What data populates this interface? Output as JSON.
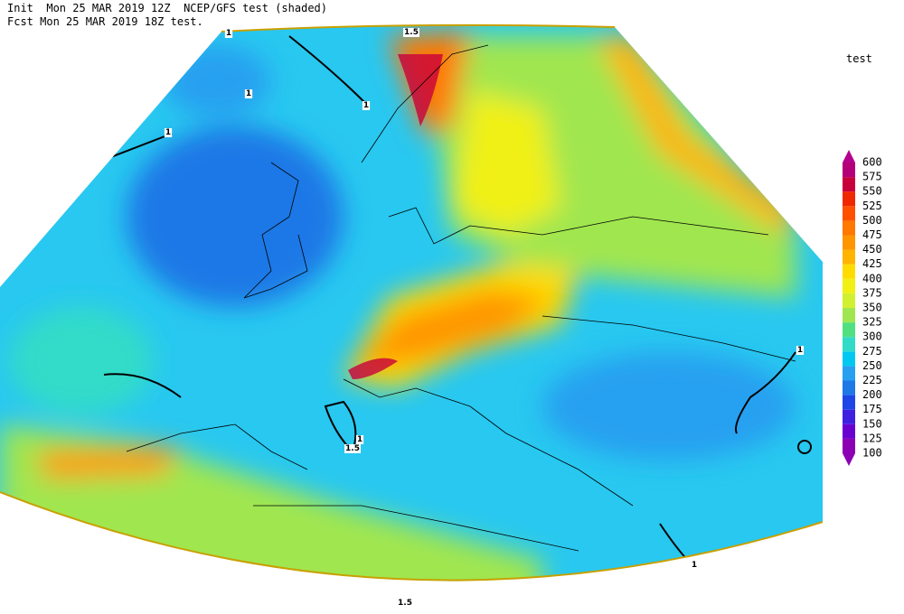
{
  "header": {
    "line1": "Init  Mon 25 MAR 2019 12Z  NCEP/GFS test (shaded)",
    "line2": "Fcst Mon 25 MAR 2019 18Z test."
  },
  "colorbar": {
    "title": "test",
    "levels": [
      100,
      125,
      150,
      175,
      200,
      225,
      250,
      275,
      300,
      325,
      350,
      375,
      400,
      425,
      450,
      475,
      500,
      525,
      550,
      575,
      600
    ],
    "colors": [
      "#8c00b4",
      "#6a00d0",
      "#4020e0",
      "#1e46e6",
      "#1e78e6",
      "#28a0f0",
      "#00c8f0",
      "#30dcc8",
      "#50e080",
      "#a0e650",
      "#d2f032",
      "#f0f014",
      "#ffdc00",
      "#ffb400",
      "#ff9600",
      "#ff7800",
      "#ff5000",
      "#f02800",
      "#c8003c",
      "#b40078"
    ],
    "under_color": "#8c00b4",
    "over_color": "#b4008c"
  },
  "contour_labels": [
    "1.5",
    "1",
    "1",
    "1",
    "1",
    "1",
    "1.5",
    "1",
    "1",
    "1.5"
  ]
}
